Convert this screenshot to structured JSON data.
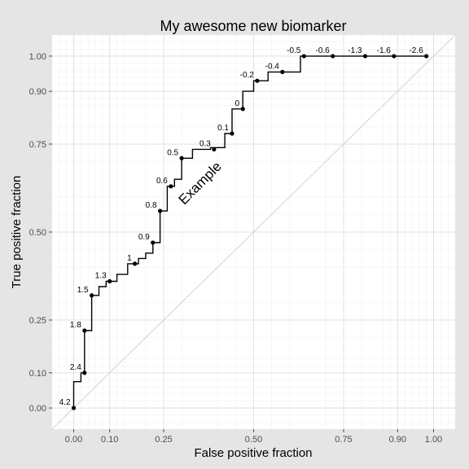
{
  "chart_data": {
    "type": "line",
    "title": "My awesome new biomarker",
    "xlabel": "False positive fraction",
    "ylabel": "True positive fraction",
    "xlim": [
      -0.06,
      1.06
    ],
    "ylim": [
      -0.06,
      1.06
    ],
    "x_ticks": [
      0.0,
      0.1,
      0.25,
      0.5,
      0.75,
      0.9,
      1.0
    ],
    "x_tick_labels": [
      "0.00",
      "0.10",
      "0.25",
      "0.50",
      "0.75",
      "0.90",
      "1.00"
    ],
    "y_ticks": [
      0.0,
      0.1,
      0.25,
      0.5,
      0.75,
      0.9,
      1.0
    ],
    "y_tick_labels": [
      "0.00",
      "0.10",
      "0.25",
      "0.50",
      "0.75",
      "0.90",
      "1.00"
    ],
    "grid": true,
    "reference_line": {
      "x": [
        -0.06,
        1.06
      ],
      "y": [
        -0.06,
        1.06
      ],
      "color": "#ffffff"
    },
    "annotation": {
      "text": "Example",
      "x": 0.36,
      "y": 0.63,
      "rotation": -45
    },
    "series": [
      {
        "color": "#000000",
        "x": [
          0.0,
          0.0,
          0.02,
          0.02,
          0.03,
          0.03,
          0.05,
          0.05,
          0.07,
          0.07,
          0.09,
          0.09,
          0.12,
          0.12,
          0.15,
          0.15,
          0.18,
          0.18,
          0.2,
          0.2,
          0.22,
          0.22,
          0.24,
          0.24,
          0.26,
          0.26,
          0.28,
          0.28,
          0.3,
          0.3,
          0.33,
          0.33,
          0.38,
          0.38,
          0.42,
          0.42,
          0.44,
          0.44,
          0.47,
          0.47,
          0.5,
          0.5,
          0.54,
          0.54,
          0.63,
          0.63,
          0.72,
          0.72,
          0.81,
          0.81,
          0.89,
          0.89,
          0.98
        ],
        "y": [
          0.0,
          0.075,
          0.075,
          0.1,
          0.1,
          0.22,
          0.22,
          0.32,
          0.32,
          0.345,
          0.345,
          0.36,
          0.36,
          0.38,
          0.38,
          0.41,
          0.41,
          0.425,
          0.425,
          0.44,
          0.44,
          0.47,
          0.47,
          0.56,
          0.56,
          0.63,
          0.63,
          0.65,
          0.65,
          0.71,
          0.71,
          0.735,
          0.735,
          0.74,
          0.74,
          0.78,
          0.78,
          0.85,
          0.85,
          0.9,
          0.9,
          0.93,
          0.93,
          0.955,
          0.955,
          1.0,
          1.0,
          1.0,
          1.0,
          1.0,
          1.0,
          1.0,
          1.0
        ]
      }
    ],
    "labeled_points": [
      {
        "x": 0.0,
        "y": 0.0,
        "label": "4.2"
      },
      {
        "x": 0.03,
        "y": 0.1,
        "label": "2.4"
      },
      {
        "x": 0.03,
        "y": 0.22,
        "label": "1.8"
      },
      {
        "x": 0.05,
        "y": 0.32,
        "label": "1.5"
      },
      {
        "x": 0.1,
        "y": 0.36,
        "label": "1.3"
      },
      {
        "x": 0.17,
        "y": 0.41,
        "label": "1"
      },
      {
        "x": 0.22,
        "y": 0.47,
        "label": "0.9"
      },
      {
        "x": 0.24,
        "y": 0.56,
        "label": "0.8"
      },
      {
        "x": 0.27,
        "y": 0.63,
        "label": "0.6"
      },
      {
        "x": 0.3,
        "y": 0.71,
        "label": "0.5"
      },
      {
        "x": 0.39,
        "y": 0.735,
        "label": "0.3"
      },
      {
        "x": 0.44,
        "y": 0.78,
        "label": "0.1"
      },
      {
        "x": 0.47,
        "y": 0.85,
        "label": "0"
      },
      {
        "x": 0.51,
        "y": 0.93,
        "label": "-0.2"
      },
      {
        "x": 0.58,
        "y": 0.955,
        "label": "-0.4"
      },
      {
        "x": 0.64,
        "y": 1.0,
        "label": "-0.5"
      },
      {
        "x": 0.72,
        "y": 1.0,
        "label": "-0.6"
      },
      {
        "x": 0.81,
        "y": 1.0,
        "label": "-1.3"
      },
      {
        "x": 0.89,
        "y": 1.0,
        "label": "-1.6"
      },
      {
        "x": 0.98,
        "y": 1.0,
        "label": "-2.6"
      }
    ]
  }
}
